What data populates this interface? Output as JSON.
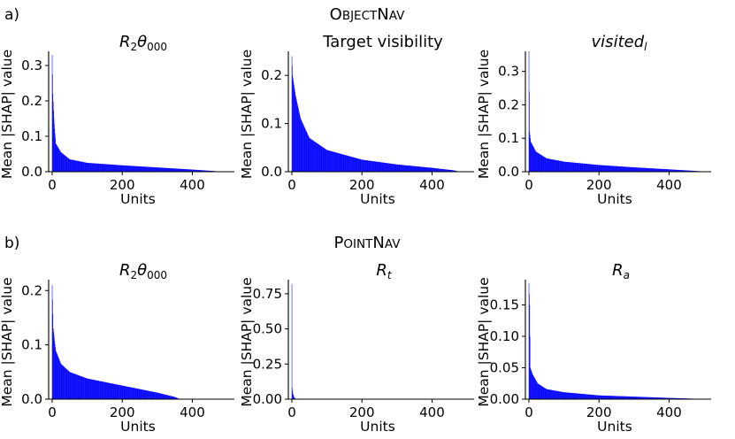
{
  "rows": [
    {
      "label": "a)",
      "title_first": "O",
      "title_rest1": "BJECT",
      "title_mid": "N",
      "title_rest2": "AV"
    },
    {
      "label": "b)",
      "title_first": "P",
      "title_rest1": "OINT",
      "title_mid": "N",
      "title_rest2": "AV"
    }
  ],
  "chart_data": [
    {
      "type": "bar",
      "title": "R2θ000",
      "title_main": "R",
      "title_sub": "2",
      "title_tail": "θ",
      "title_tail_sub": "000",
      "xlabel": "Units",
      "ylabel": "Mean |SHAP| value",
      "xlim": [
        -10,
        520
      ],
      "ylim": [
        0,
        0.34
      ],
      "xticks": [
        0,
        200,
        400
      ],
      "xtick_labels": [
        "0",
        "200",
        "400"
      ],
      "yticks": [
        0,
        0.1,
        0.2,
        0.3
      ],
      "ytick_labels": [
        "0.0",
        "0.1",
        "0.2",
        "0.3"
      ],
      "n_units": 480,
      "profile": [
        [
          0,
          0.33
        ],
        [
          2,
          0.22
        ],
        [
          5,
          0.15
        ],
        [
          10,
          0.08
        ],
        [
          25,
          0.055
        ],
        [
          50,
          0.035
        ],
        [
          100,
          0.025
        ],
        [
          200,
          0.018
        ],
        [
          300,
          0.012
        ],
        [
          400,
          0.006
        ],
        [
          460,
          0.002
        ],
        [
          480,
          0.0
        ]
      ]
    },
    {
      "type": "bar",
      "title": "Target visibility",
      "xlabel": "Units",
      "ylabel": "Mean |SHAP| value",
      "xlim": [
        -10,
        520
      ],
      "ylim": [
        0,
        0.25
      ],
      "xticks": [
        0,
        200,
        400
      ],
      "xtick_labels": [
        "0",
        "200",
        "400"
      ],
      "yticks": [
        0,
        0.1,
        0.2
      ],
      "ytick_labels": [
        "0.0",
        "0.1",
        "0.2"
      ],
      "n_units": 480,
      "profile": [
        [
          0,
          0.24
        ],
        [
          2,
          0.2
        ],
        [
          10,
          0.16
        ],
        [
          25,
          0.11
        ],
        [
          50,
          0.07
        ],
        [
          100,
          0.045
        ],
        [
          200,
          0.025
        ],
        [
          300,
          0.015
        ],
        [
          400,
          0.008
        ],
        [
          460,
          0.003
        ],
        [
          480,
          0.0
        ]
      ]
    },
    {
      "type": "bar",
      "title": "visited_l",
      "title_main": "visited",
      "title_sub": "l",
      "xlabel": "Units",
      "ylabel": "Mean |SHAP| value",
      "xlim": [
        -10,
        520
      ],
      "ylim": [
        0,
        0.36
      ],
      "xticks": [
        0,
        200,
        400
      ],
      "xtick_labels": [
        "0",
        "200",
        "400"
      ],
      "yticks": [
        0,
        0.1,
        0.2,
        0.3
      ],
      "ytick_labels": [
        "0.0",
        "0.1",
        "0.2",
        "0.3"
      ],
      "n_units": 500,
      "profile": [
        [
          0,
          0.36
        ],
        [
          2,
          0.12
        ],
        [
          5,
          0.09
        ],
        [
          20,
          0.06
        ],
        [
          50,
          0.04
        ],
        [
          100,
          0.03
        ],
        [
          200,
          0.02
        ],
        [
          300,
          0.013
        ],
        [
          400,
          0.007
        ],
        [
          480,
          0.002
        ],
        [
          500,
          0.0
        ]
      ]
    },
    {
      "type": "bar",
      "title": "R2θ000",
      "title_main": "R",
      "title_sub": "2",
      "title_tail": "θ",
      "title_tail_sub": "000",
      "xlabel": "Units",
      "ylabel": "Mean |SHAP| value",
      "xlim": [
        -10,
        520
      ],
      "ylim": [
        0,
        0.22
      ],
      "xticks": [
        0,
        200,
        400
      ],
      "xtick_labels": [
        "0",
        "200",
        "400"
      ],
      "yticks": [
        0,
        0.1,
        0.2
      ],
      "ytick_labels": [
        "0.0",
        "0.1",
        "0.2"
      ],
      "n_units": 365,
      "profile": [
        [
          0,
          0.21
        ],
        [
          3,
          0.13
        ],
        [
          10,
          0.09
        ],
        [
          25,
          0.065
        ],
        [
          50,
          0.05
        ],
        [
          100,
          0.038
        ],
        [
          200,
          0.025
        ],
        [
          300,
          0.012
        ],
        [
          350,
          0.004
        ],
        [
          365,
          0.0
        ]
      ]
    },
    {
      "type": "bar",
      "title": "R_t",
      "title_main": "R",
      "title_sub": "t",
      "xlabel": "Units",
      "ylabel": "Mean |SHAP| value",
      "xlim": [
        -10,
        520
      ],
      "ylim": [
        0,
        0.85
      ],
      "xticks": [
        0,
        200,
        400
      ],
      "xtick_labels": [
        "0",
        "200",
        "400"
      ],
      "yticks": [
        0,
        0.25,
        0.5,
        0.75
      ],
      "ytick_labels": [
        "0.00",
        "0.25",
        "0.50",
        "0.75"
      ],
      "n_units": 12,
      "profile": [
        [
          0,
          0.82
        ],
        [
          1,
          0.08
        ],
        [
          3,
          0.04
        ],
        [
          6,
          0.015
        ],
        [
          10,
          0.004
        ],
        [
          12,
          0.0
        ]
      ]
    },
    {
      "type": "bar",
      "title": "R_a",
      "title_main": "R",
      "title_sub": "a",
      "xlabel": "Units",
      "ylabel": "Mean |SHAP| value",
      "xlim": [
        -10,
        520
      ],
      "ylim": [
        0,
        0.19
      ],
      "xticks": [
        0,
        200,
        400
      ],
      "xtick_labels": [
        "0",
        "200",
        "400"
      ],
      "yticks": [
        0,
        0.05,
        0.1,
        0.15
      ],
      "ytick_labels": [
        "0.00",
        "0.05",
        "0.10",
        "0.15"
      ],
      "n_units": 510,
      "profile": [
        [
          0,
          0.185
        ],
        [
          2,
          0.15
        ],
        [
          4,
          0.05
        ],
        [
          10,
          0.04
        ],
        [
          25,
          0.025
        ],
        [
          50,
          0.016
        ],
        [
          100,
          0.011
        ],
        [
          200,
          0.006
        ],
        [
          300,
          0.004
        ],
        [
          400,
          0.002
        ],
        [
          510,
          0.0
        ]
      ]
    }
  ],
  "colors": {
    "bar": "#0000ff",
    "bar_edge": "#1a1aa8",
    "axis": "#000000"
  }
}
